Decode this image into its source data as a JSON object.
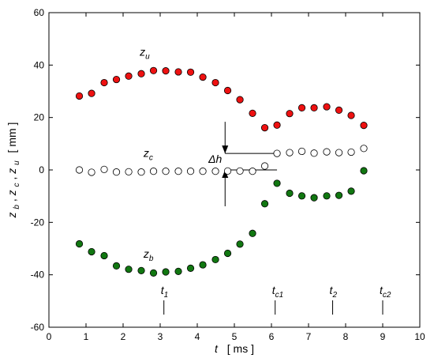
{
  "chart_data": {
    "type": "scatter",
    "xlim": [
      0,
      10
    ],
    "ylim": [
      -60,
      60
    ],
    "x_ticks": [
      0,
      1,
      2,
      3,
      4,
      5,
      6,
      7,
      8,
      9,
      10
    ],
    "y_ticks": [
      -60,
      -40,
      -20,
      0,
      20,
      40,
      60
    ],
    "xlabel": {
      "var": "t",
      "unit": "[ ms ]"
    },
    "ylabel": {
      "var": "z",
      "subs": [
        "b",
        "c",
        "u"
      ],
      "unit": "[ mm ]"
    },
    "grid": false,
    "colors": {
      "u": "#ee1111",
      "c": "#ffffff",
      "b": "#117711"
    },
    "series": [
      {
        "name": "z_u",
        "x": [
          0.82,
          1.15,
          1.49,
          1.82,
          2.15,
          2.49,
          2.82,
          3.15,
          3.49,
          3.82,
          4.15,
          4.49,
          4.82,
          5.15,
          5.49,
          5.82,
          6.15,
          6.49,
          6.82,
          7.15,
          7.49,
          7.82,
          8.15,
          8.49
        ],
        "y": [
          28.2,
          29.2,
          33.3,
          34.5,
          35.8,
          36.7,
          37.9,
          37.8,
          37.4,
          37.3,
          35.4,
          33.3,
          30.3,
          26.8,
          21.6,
          16.1,
          17.1,
          21.5,
          23.7,
          23.7,
          24.1,
          22.8,
          20.8,
          17.0
        ]
      },
      {
        "name": "z_c",
        "x": [
          0.82,
          1.15,
          1.49,
          1.82,
          2.15,
          2.49,
          2.82,
          3.15,
          3.49,
          3.82,
          4.15,
          4.49,
          4.82,
          5.15,
          5.49,
          5.82,
          6.15,
          6.49,
          6.82,
          7.15,
          7.49,
          7.82,
          8.15,
          8.49
        ],
        "y": [
          0.0,
          -0.9,
          0.2,
          -0.8,
          -0.7,
          -0.8,
          -0.5,
          -0.5,
          -0.5,
          -0.5,
          -0.5,
          -0.5,
          -0.4,
          -0.4,
          -0.5,
          1.5,
          6.3,
          6.6,
          7.1,
          6.4,
          6.9,
          6.6,
          6.8,
          8.2
        ]
      },
      {
        "name": "z_b",
        "x": [
          0.82,
          1.15,
          1.49,
          1.82,
          2.15,
          2.49,
          2.82,
          3.15,
          3.49,
          3.82,
          4.15,
          4.49,
          4.82,
          5.15,
          5.49,
          5.82,
          6.15,
          6.49,
          6.82,
          7.15,
          7.49,
          7.82,
          8.15,
          8.49
        ],
        "y": [
          -28.2,
          -31.2,
          -32.7,
          -36.6,
          -37.9,
          -38.4,
          -39.3,
          -38.9,
          -38.7,
          -37.5,
          -36.2,
          -34.2,
          -31.8,
          -28.3,
          -24.2,
          -12.9,
          -5.1,
          -8.9,
          -9.9,
          -10.6,
          -9.9,
          -9.7,
          -8.1,
          -0.3
        ]
      }
    ],
    "series_labels": [
      {
        "var": "z",
        "sub": "u",
        "x": 2.45,
        "y": 43.5
      },
      {
        "var": "z",
        "sub": "c",
        "x": 2.55,
        "y": 5.0
      },
      {
        "var": "z",
        "sub": "b",
        "x": 2.55,
        "y": -33.5
      }
    ],
    "time_markers": [
      {
        "var": "t",
        "sub": "1",
        "x": 3.1
      },
      {
        "var": "t",
        "sub": "c1",
        "x": 6.1
      },
      {
        "var": "t",
        "sub": "2",
        "x": 7.65
      },
      {
        "var": "t",
        "sub": "c2",
        "x": 9.0
      }
    ],
    "delta_h": {
      "label": "Δh",
      "x": 4.75,
      "y_top": 6.3,
      "y_bottom": 0.0,
      "line_x_end": 6.15
    }
  }
}
